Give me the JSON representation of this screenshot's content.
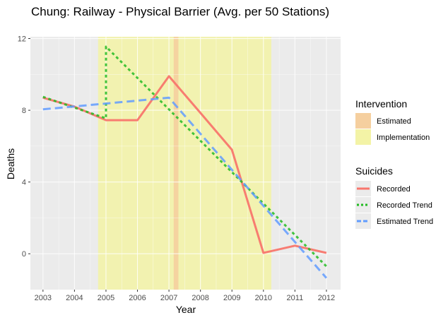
{
  "chart_data": {
    "type": "line",
    "title": "Chung: Railway - Physical Barrier (Avg. per 50 Stations)",
    "xlabel": "Year",
    "ylabel": "Deaths",
    "x_ticks": [
      "2003",
      "2004",
      "2005",
      "2006",
      "2007",
      "2008",
      "2009",
      "2010",
      "2011",
      "2012"
    ],
    "y_ticks": [
      "0",
      "4",
      "8",
      "12"
    ],
    "xlim": [
      2002.6,
      2012.45
    ],
    "ylim": [
      -2.0,
      12.1
    ],
    "grid": true,
    "legend_position": "right",
    "intervention": {
      "title": "Intervention",
      "items": [
        {
          "label": "Estimated",
          "color": "#f5cf9f",
          "range": [
            2007.15,
            2007.3
          ]
        },
        {
          "label": "Implementation",
          "color": "#f3f3a6",
          "range": [
            2004.75,
            2010.25
          ]
        }
      ]
    },
    "suicides_title": "Suicides",
    "series": [
      {
        "name": "Recorded",
        "color": "#f8766d",
        "dash": "solid",
        "x": [
          2003,
          2004,
          2005,
          2006,
          2007,
          2008,
          2009,
          2010,
          2011,
          2012
        ],
        "y": [
          8.7,
          8.2,
          7.45,
          7.45,
          9.9,
          7.85,
          5.8,
          0.05,
          0.45,
          0.05
        ]
      },
      {
        "name": "Recorded Trend",
        "color": "#22bb22",
        "dash": "dotted",
        "x": [
          2003,
          2004,
          2005,
          2005,
          2012
        ],
        "y": [
          8.75,
          8.15,
          7.55,
          11.55,
          -0.7
        ]
      },
      {
        "name": "Estimated Trend",
        "color": "#619cff",
        "dash": "dashed",
        "x": [
          2003,
          2007,
          2012
        ],
        "y": [
          8.05,
          8.7,
          -1.35
        ]
      }
    ]
  }
}
